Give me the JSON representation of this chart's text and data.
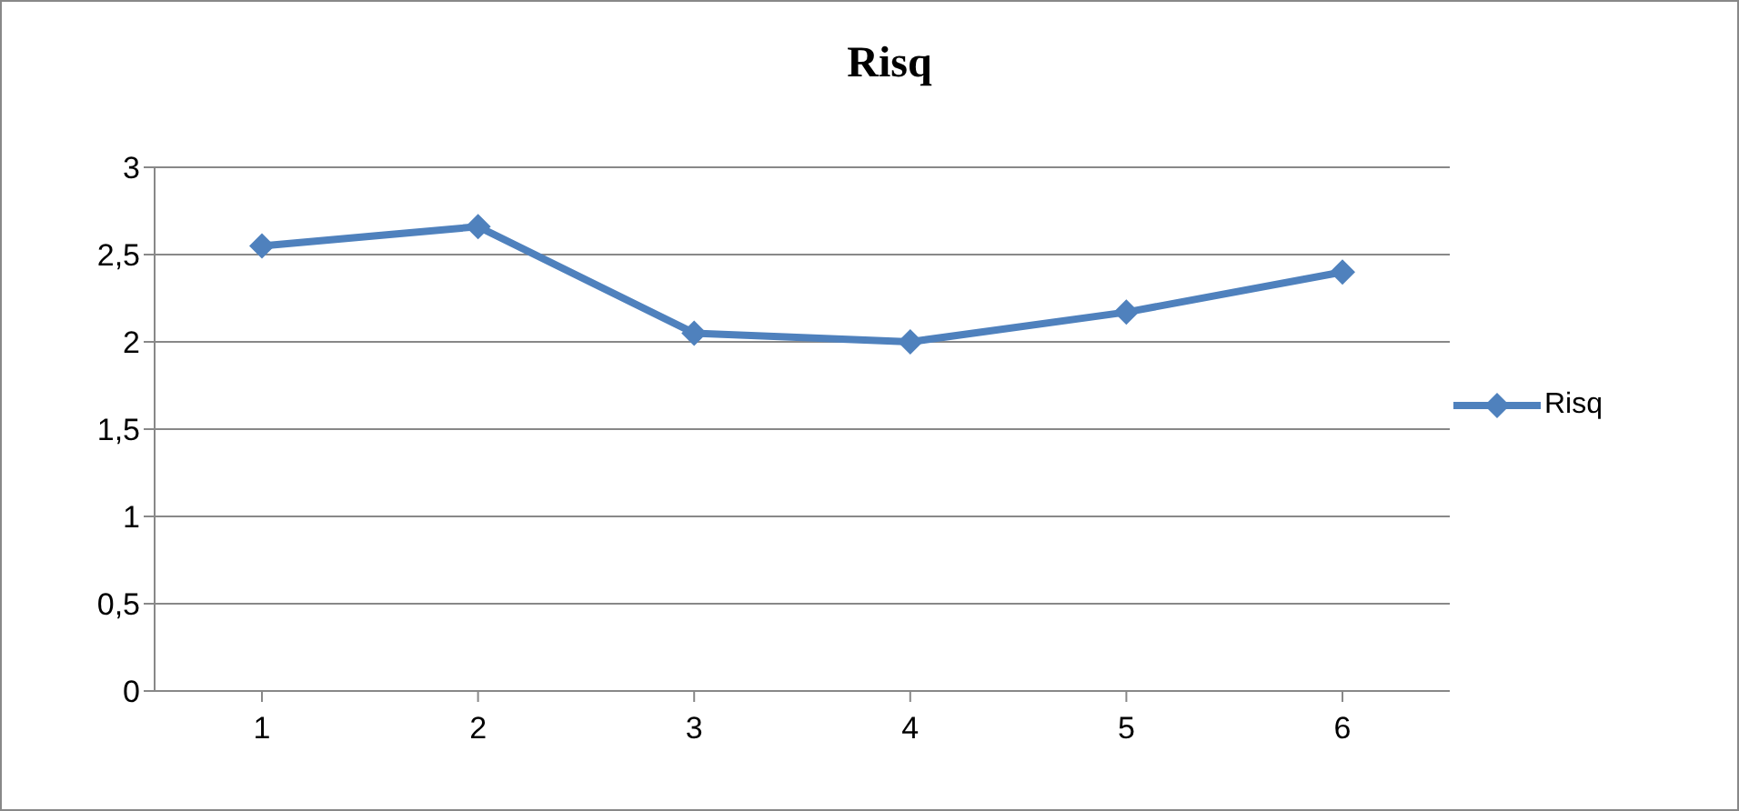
{
  "chart_data": {
    "type": "line",
    "title": "Risq",
    "categories": [
      "1",
      "2",
      "3",
      "4",
      "5",
      "6"
    ],
    "series": [
      {
        "name": "Risq",
        "color": "#4f81bd",
        "values": [
          2.55,
          2.66,
          2.05,
          2.0,
          2.17,
          2.4
        ]
      }
    ],
    "ylim": [
      0,
      3
    ],
    "yticks": [
      0,
      {
        "value": 0.5,
        "label": "0,5"
      },
      1,
      {
        "value": 1.5,
        "label": "1,5"
      },
      2,
      {
        "value": 2.5,
        "label": "2,5"
      },
      3
    ],
    "grid": "y",
    "legend": "right",
    "marker": "diamond",
    "line_style": "solid"
  }
}
